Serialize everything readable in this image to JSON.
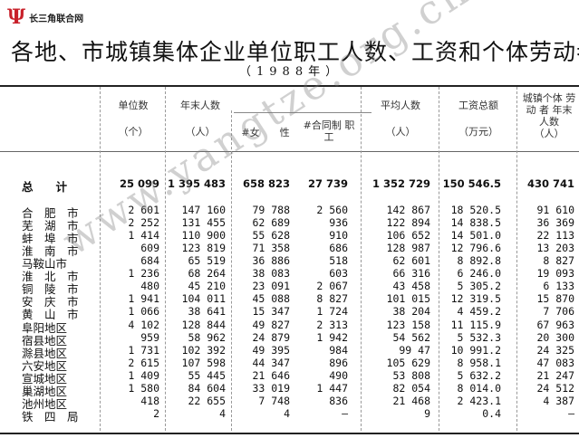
{
  "logo": {
    "text": "长三角联合网",
    "brand_color": "#c8202a"
  },
  "title": "各地、市城镇集体企业单位职工人数、工资和个体劳动者",
  "subtitle": "（1988年）",
  "watermark": "www.yangtze.org.cn",
  "headers": {
    "units": {
      "label": "单位数",
      "unit": "（个）"
    },
    "year_end": {
      "label": "年末人数",
      "unit": "（人）"
    },
    "female": "#女　　性",
    "contract": "#合同制 职　工",
    "average": {
      "label": "平均人数",
      "unit": "（人）"
    },
    "wages": {
      "label": "工资总额",
      "unit": "（万元）"
    },
    "individual": {
      "label": "城镇个体 劳 动 者 年末人数",
      "unit": "（人）"
    }
  },
  "total": {
    "label": "总　　计",
    "values": [
      "25 099",
      "1 395 483",
      "658 823",
      "27 739",
      "1 352 729",
      "150 546.5",
      "430 741"
    ]
  },
  "rows": [
    {
      "label": "合　肥　市",
      "values": [
        "2 601",
        "147 160",
        "79 788",
        "2 560",
        "142 867",
        "18 520.5",
        "91 610"
      ]
    },
    {
      "label": "芜　湖　市",
      "values": [
        "2 252",
        "131 455",
        "62 689",
        "936",
        "122 894",
        "14 838.5",
        "36 369"
      ]
    },
    {
      "label": "蚌　埠　市",
      "values": [
        "1 414",
        "110 900",
        "55 628",
        "910",
        "106 652",
        "14 501.0",
        "22 113"
      ]
    },
    {
      "label": "淮　南　市",
      "values": [
        "609",
        "123 819",
        "71 358",
        "686",
        "128 987",
        "12 796.6",
        "13 203"
      ]
    },
    {
      "label": "马鞍山市",
      "values": [
        "684",
        "65 519",
        "36 886",
        "518",
        "62 601",
        "8 892.8",
        "8 827"
      ]
    },
    {
      "label": "淮　北　市",
      "values": [
        "1 236",
        "68 264",
        "38 083",
        "603",
        "66 316",
        "6 246.0",
        "19 093"
      ]
    },
    {
      "label": "铜　陵　市",
      "values": [
        "480",
        "45 210",
        "23 091",
        "2 067",
        "43 458",
        "5 305.2",
        "6 133"
      ]
    },
    {
      "label": "安　庆　市",
      "values": [
        "1 941",
        "104 011",
        "45 088",
        "8 827",
        "101 015",
        "12 319.5",
        "15 870"
      ]
    },
    {
      "label": "黄　山　市",
      "values": [
        "1 066",
        "38 641",
        "15 347",
        "1 724",
        "38 204",
        "4 459.2",
        "7 706"
      ]
    },
    {
      "label": "阜阳地区",
      "values": [
        "4 102",
        "128 844",
        "49 827",
        "2 313",
        "123 158",
        "11 115.9",
        "67 963"
      ]
    },
    {
      "label": "宿县地区",
      "values": [
        "959",
        "58 962",
        "24 879",
        "1 942",
        "54 562",
        "5 532.3",
        "20 300"
      ]
    },
    {
      "label": "滁县地区",
      "values": [
        "1 731",
        "102 392",
        "49 395",
        "984",
        "99 47",
        "10 991.2",
        "24 325"
      ]
    },
    {
      "label": "六安地区",
      "values": [
        "2 615",
        "107 598",
        "44 347",
        "896",
        "105 629",
        "8 958.1",
        "47 083"
      ]
    },
    {
      "label": "宣城地区",
      "values": [
        "1 409",
        "55 445",
        "21 646",
        "490",
        "53 808",
        "5 632.2",
        "21 247"
      ]
    },
    {
      "label": "巢湖地区",
      "values": [
        "1 580",
        "84 604",
        "33 019",
        "1 447",
        "82 054",
        "8 014.0",
        "24 512"
      ]
    },
    {
      "label": "池州地区",
      "values": [
        "418",
        "22 655",
        "7 748",
        "836",
        "21 468",
        "2 423.1",
        "4 387"
      ]
    },
    {
      "label": "铁　四　局",
      "values": [
        "2",
        "4",
        "4",
        "—",
        "9",
        "0.4",
        "—"
      ]
    }
  ]
}
